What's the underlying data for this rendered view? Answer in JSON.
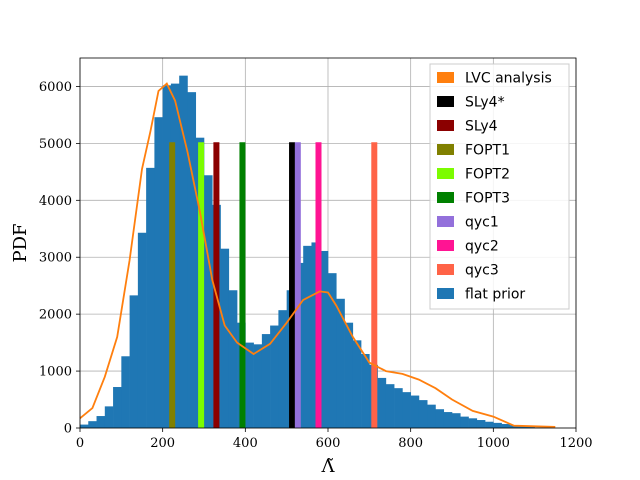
{
  "chart_data": {
    "type": "bar",
    "xlabel": "Λ̃",
    "ylabel": "PDF",
    "xlim": [
      0,
      1200
    ],
    "ylim": [
      0,
      6500
    ],
    "xticks": [
      0,
      200,
      400,
      600,
      800,
      1000,
      1200
    ],
    "yticks": [
      0,
      1000,
      2000,
      3000,
      4000,
      5000,
      6000
    ],
    "grid": true,
    "legend_position": "top-right",
    "histogram": {
      "name": "flat prior",
      "color": "#1f77b4",
      "bin_width": 20,
      "bin_starts": [
        0,
        20,
        40,
        60,
        80,
        100,
        120,
        140,
        160,
        180,
        200,
        220,
        240,
        260,
        280,
        300,
        320,
        340,
        360,
        380,
        400,
        420,
        440,
        460,
        480,
        500,
        520,
        540,
        560,
        580,
        600,
        620,
        640,
        660,
        680,
        700,
        720,
        740,
        760,
        780,
        800,
        820,
        840,
        860,
        880,
        900,
        920,
        940,
        960,
        980,
        1000,
        1020,
        1040,
        1060,
        1080,
        1100,
        1120,
        1140,
        1160,
        1180
      ],
      "counts": [
        60,
        120,
        210,
        380,
        720,
        1260,
        2330,
        3430,
        4570,
        5460,
        6020,
        6050,
        6190,
        5900,
        5100,
        4440,
        3920,
        3150,
        2420,
        1850,
        1500,
        1470,
        1650,
        1800,
        2070,
        2420,
        2900,
        3200,
        3260,
        3110,
        2720,
        2270,
        1850,
        1540,
        1300,
        1110,
        880,
        770,
        700,
        630,
        570,
        490,
        410,
        330,
        280,
        260,
        200,
        170,
        140,
        110,
        90,
        70,
        50,
        30,
        20,
        10,
        5,
        0,
        0,
        0
      ]
    },
    "kde": {
      "name": "LVC analysis",
      "color": "#ff7f0e",
      "x": [
        0,
        30,
        60,
        90,
        120,
        150,
        170,
        190,
        210,
        230,
        260,
        290,
        320,
        350,
        380,
        420,
        460,
        500,
        540,
        580,
        600,
        620,
        660,
        700,
        740,
        780,
        820,
        860,
        900,
        950,
        1000,
        1050,
        1100,
        1150
      ],
      "y": [
        170,
        350,
        900,
        1600,
        2950,
        4550,
        5200,
        5920,
        6050,
        5750,
        4850,
        3800,
        2600,
        1800,
        1500,
        1300,
        1480,
        1850,
        2250,
        2400,
        2380,
        2150,
        1600,
        1150,
        1000,
        950,
        850,
        700,
        500,
        300,
        200,
        40,
        30,
        20
      ]
    },
    "vlines": [
      {
        "name": "SLy4*",
        "color": "#000000",
        "x": 513,
        "height": 5020
      },
      {
        "name": "SLy4",
        "color": "#8b0000",
        "x": 330,
        "height": 5020
      },
      {
        "name": "FOPT1",
        "color": "#808000",
        "x": 223,
        "height": 5020
      },
      {
        "name": "FOPT2",
        "color": "#7cfc00",
        "x": 293,
        "height": 5020
      },
      {
        "name": "FOPT3",
        "color": "#008000",
        "x": 393,
        "height": 5020
      },
      {
        "name": "qyc1",
        "color": "#9370db",
        "x": 527,
        "height": 5020
      },
      {
        "name": "qyc2",
        "color": "#ff1493",
        "x": 577,
        "height": 5020
      },
      {
        "name": "qyc3",
        "color": "#ff6347",
        "x": 712,
        "height": 5020
      }
    ],
    "legend": [
      {
        "label": "LVC analysis",
        "color": "#ff7f0e"
      },
      {
        "label": "SLy4*",
        "color": "#000000"
      },
      {
        "label": "SLy4",
        "color": "#8b0000"
      },
      {
        "label": "FOPT1",
        "color": "#808000"
      },
      {
        "label": "FOPT2",
        "color": "#7cfc00"
      },
      {
        "label": "FOPT3",
        "color": "#008000"
      },
      {
        "label": "qyc1",
        "color": "#9370db"
      },
      {
        "label": "qyc2",
        "color": "#ff1493"
      },
      {
        "label": "qyc3",
        "color": "#ff6347"
      },
      {
        "label": "flat prior",
        "color": "#1f77b4"
      }
    ]
  }
}
